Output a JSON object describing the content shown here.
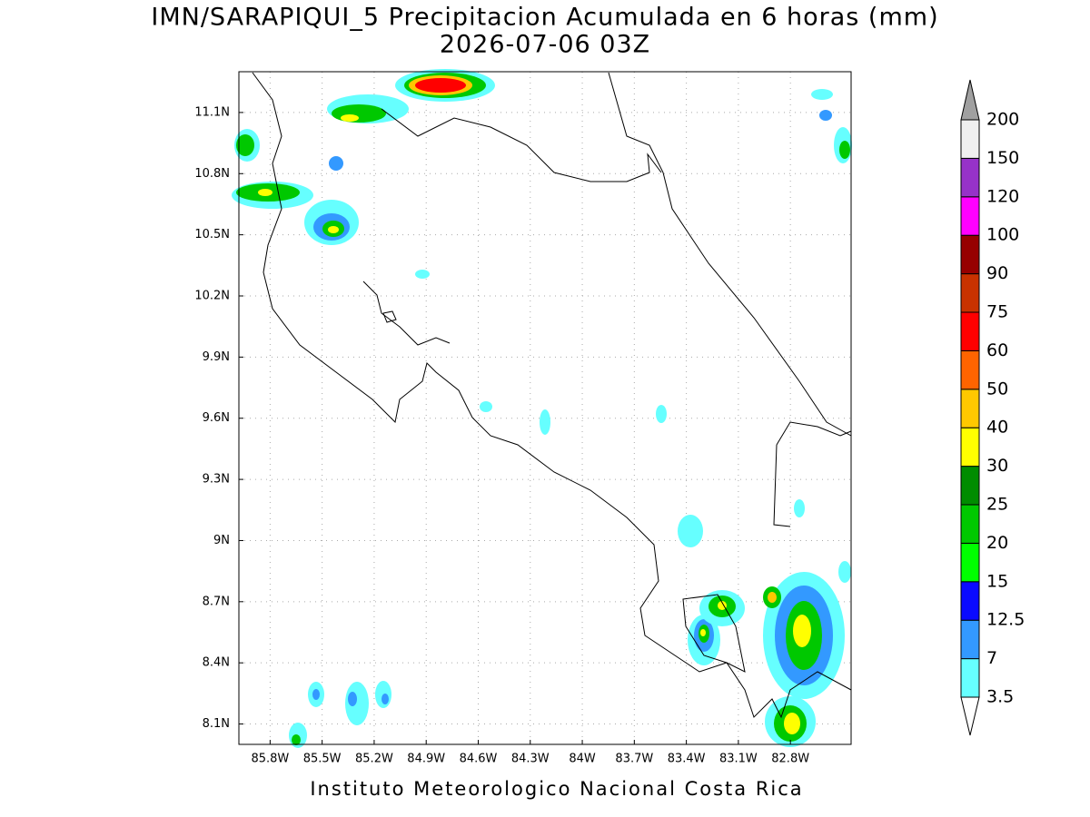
{
  "title": "IMN/SARAPIQUI_5 Precipitacion Acumulada en 6 horas (mm)",
  "subtitle": "2026-07-06 03Z",
  "map": {
    "xlim": [
      -85.98,
      -82.45
    ],
    "ylim": [
      8.0,
      11.3
    ],
    "xticks": [
      {
        "value": -85.8,
        "label": "85.8W"
      },
      {
        "value": -85.5,
        "label": "85.5W"
      },
      {
        "value": -85.2,
        "label": "85.2W"
      },
      {
        "value": -84.9,
        "label": "84.9W"
      },
      {
        "value": -84.6,
        "label": "84.6W"
      },
      {
        "value": -84.3,
        "label": "84.3W"
      },
      {
        "value": -84.0,
        "label": "84W"
      },
      {
        "value": -83.7,
        "label": "83.7W"
      },
      {
        "value": -83.4,
        "label": "83.4W"
      },
      {
        "value": -83.1,
        "label": "83.1W"
      },
      {
        "value": -82.8,
        "label": "82.8W"
      }
    ],
    "yticks": [
      {
        "value": 8.1,
        "label": "8.1N"
      },
      {
        "value": 8.4,
        "label": "8.4N"
      },
      {
        "value": 8.7,
        "label": "8.7N"
      },
      {
        "value": 9.0,
        "label": "9N"
      },
      {
        "value": 9.3,
        "label": "9.3N"
      },
      {
        "value": 9.6,
        "label": "9.6N"
      },
      {
        "value": 9.9,
        "label": "9.9N"
      },
      {
        "value": 10.2,
        "label": "10.2N"
      },
      {
        "value": 10.5,
        "label": "10.5N"
      },
      {
        "value": 10.8,
        "label": "10.8N"
      },
      {
        "value": 11.1,
        "label": "11.1N"
      }
    ],
    "grid": true
  },
  "colorbar": {
    "levels": [
      3.5,
      7,
      12.5,
      15,
      20,
      25,
      30,
      40,
      50,
      60,
      75,
      90,
      100,
      120,
      150,
      200
    ],
    "colors": [
      "#66ffff",
      "#3399ff",
      "#0a0aff",
      "#00ff00",
      "#00c800",
      "#008c00",
      "#ffff00",
      "#ffc800",
      "#ff6400",
      "#ff0000",
      "#c83200",
      "#960000",
      "#ff00ff",
      "#9632c8",
      "#f0f0f0"
    ],
    "over_color": "#a0a0a0"
  },
  "footer": "Instituto Meteorologico Nacional Costa Rica"
}
